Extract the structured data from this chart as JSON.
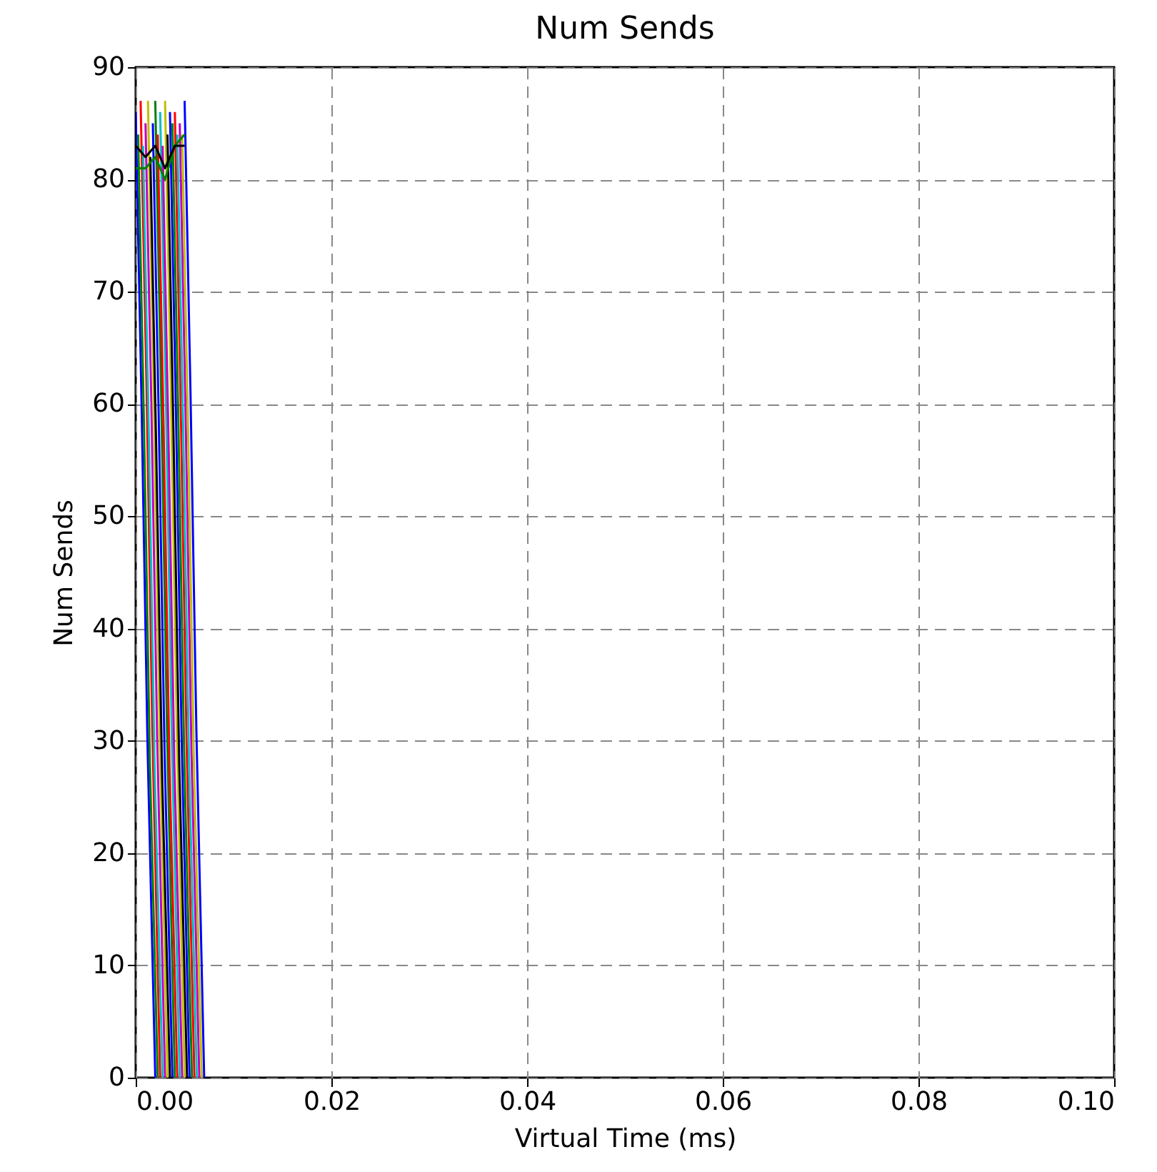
{
  "chart_data": {
    "type": "line",
    "title": "Num Sends",
    "xlabel": "Virtual Time (ms)",
    "ylabel": "Num Sends",
    "xlim": [
      0,
      0.1
    ],
    "ylim": [
      0,
      90
    ],
    "xticks": [
      {
        "value": 0,
        "label": "0.00"
      },
      {
        "value": 0.02,
        "label": "0.02"
      },
      {
        "value": 0.04,
        "label": "0.04"
      },
      {
        "value": 0.06,
        "label": "0.06"
      },
      {
        "value": 0.08,
        "label": "0.08"
      },
      {
        "value": 0.1,
        "label": "0.10"
      }
    ],
    "yticks": [
      0,
      10,
      20,
      30,
      40,
      50,
      60,
      70,
      80,
      90
    ],
    "grid": true,
    "legend": false,
    "marker": "none",
    "line_style": "solid",
    "series": [
      {
        "color": "#0000ff",
        "x": [
          0,
          0.0006,
          0.0012,
          0.002
        ],
        "values": [
          86,
          60,
          30,
          0
        ]
      },
      {
        "color": "#008000",
        "x": [
          0.00025,
          0.00085,
          0.00145,
          0.00225
        ],
        "values": [
          84,
          58,
          28,
          0
        ]
      },
      {
        "color": "#ff0000",
        "x": [
          0.0005,
          0.0011,
          0.0017,
          0.0025
        ],
        "values": [
          87,
          62,
          31,
          0
        ]
      },
      {
        "color": "#00bfbf",
        "x": [
          0.00075,
          0.00135,
          0.00195,
          0.00275
        ],
        "values": [
          83,
          57,
          27,
          0
        ]
      },
      {
        "color": "#bf00bf",
        "x": [
          0.001,
          0.0016,
          0.0022,
          0.003
        ],
        "values": [
          85,
          60,
          30,
          0
        ]
      },
      {
        "color": "#bfbf00",
        "x": [
          0.00125,
          0.00185,
          0.00245,
          0.00325
        ],
        "values": [
          87,
          61,
          31,
          0
        ]
      },
      {
        "color": "#000000",
        "x": [
          0.0015,
          0.0021,
          0.0027,
          0.0035
        ],
        "values": [
          82,
          56,
          27,
          0
        ]
      },
      {
        "color": "#0000ff",
        "x": [
          0.00175,
          0.00235,
          0.00295,
          0.00375
        ],
        "values": [
          85,
          59,
          29,
          0
        ]
      },
      {
        "color": "#008000",
        "x": [
          0.002,
          0.0026,
          0.0032,
          0.004
        ],
        "values": [
          87,
          61,
          31,
          0
        ]
      },
      {
        "color": "#ff0000",
        "x": [
          0.00225,
          0.00285,
          0.00345,
          0.00425
        ],
        "values": [
          84,
          58,
          28,
          0
        ]
      },
      {
        "color": "#00bfbf",
        "x": [
          0.0025,
          0.0031,
          0.0037,
          0.0045
        ],
        "values": [
          86,
          60,
          30,
          0
        ]
      },
      {
        "color": "#bf00bf",
        "x": [
          0.00275,
          0.00335,
          0.00395,
          0.00475
        ],
        "values": [
          83,
          57,
          28,
          0
        ]
      },
      {
        "color": "#bfbf00",
        "x": [
          0.003,
          0.0036,
          0.0042,
          0.005
        ],
        "values": [
          87,
          61,
          31,
          0
        ]
      },
      {
        "color": "#000000",
        "x": [
          0.00325,
          0.00385,
          0.00445,
          0.00525
        ],
        "values": [
          84,
          58,
          28,
          0
        ]
      },
      {
        "color": "#0000ff",
        "x": [
          0.0035,
          0.0041,
          0.0047,
          0.0055
        ],
        "values": [
          86,
          60,
          30,
          0
        ]
      },
      {
        "color": "#008000",
        "x": [
          0.00375,
          0.00435,
          0.00495,
          0.00575
        ],
        "values": [
          85,
          59,
          29,
          0
        ]
      },
      {
        "color": "#ff0000",
        "x": [
          0.004,
          0.0046,
          0.0052,
          0.006
        ],
        "values": [
          86,
          60,
          30,
          0
        ]
      },
      {
        "color": "#00bfbf",
        "x": [
          0.00425,
          0.00485,
          0.00545,
          0.00625
        ],
        "values": [
          84,
          58,
          28,
          0
        ]
      },
      {
        "color": "#bf00bf",
        "x": [
          0.0045,
          0.0051,
          0.0057,
          0.0065
        ],
        "values": [
          85,
          59,
          29,
          0
        ]
      },
      {
        "color": "#bfbf00",
        "x": [
          0.00475,
          0.00535,
          0.00595,
          0.00675
        ],
        "values": [
          84,
          58,
          28,
          0
        ]
      },
      {
        "color": "#0000ff",
        "x": [
          0.005,
          0.0056,
          0.0062,
          0.007
        ],
        "values": [
          87,
          61,
          31,
          0
        ]
      },
      {
        "color": "#008000",
        "x": [
          0,
          0.001,
          0.002,
          0.003,
          0.004,
          0.005
        ],
        "values": [
          81,
          81,
          82,
          80,
          83,
          84
        ]
      },
      {
        "color": "#000000",
        "x": [
          0,
          0.001,
          0.002,
          0.003,
          0.004,
          0.005
        ],
        "values": [
          83,
          82,
          83,
          81,
          83,
          83
        ]
      }
    ]
  }
}
